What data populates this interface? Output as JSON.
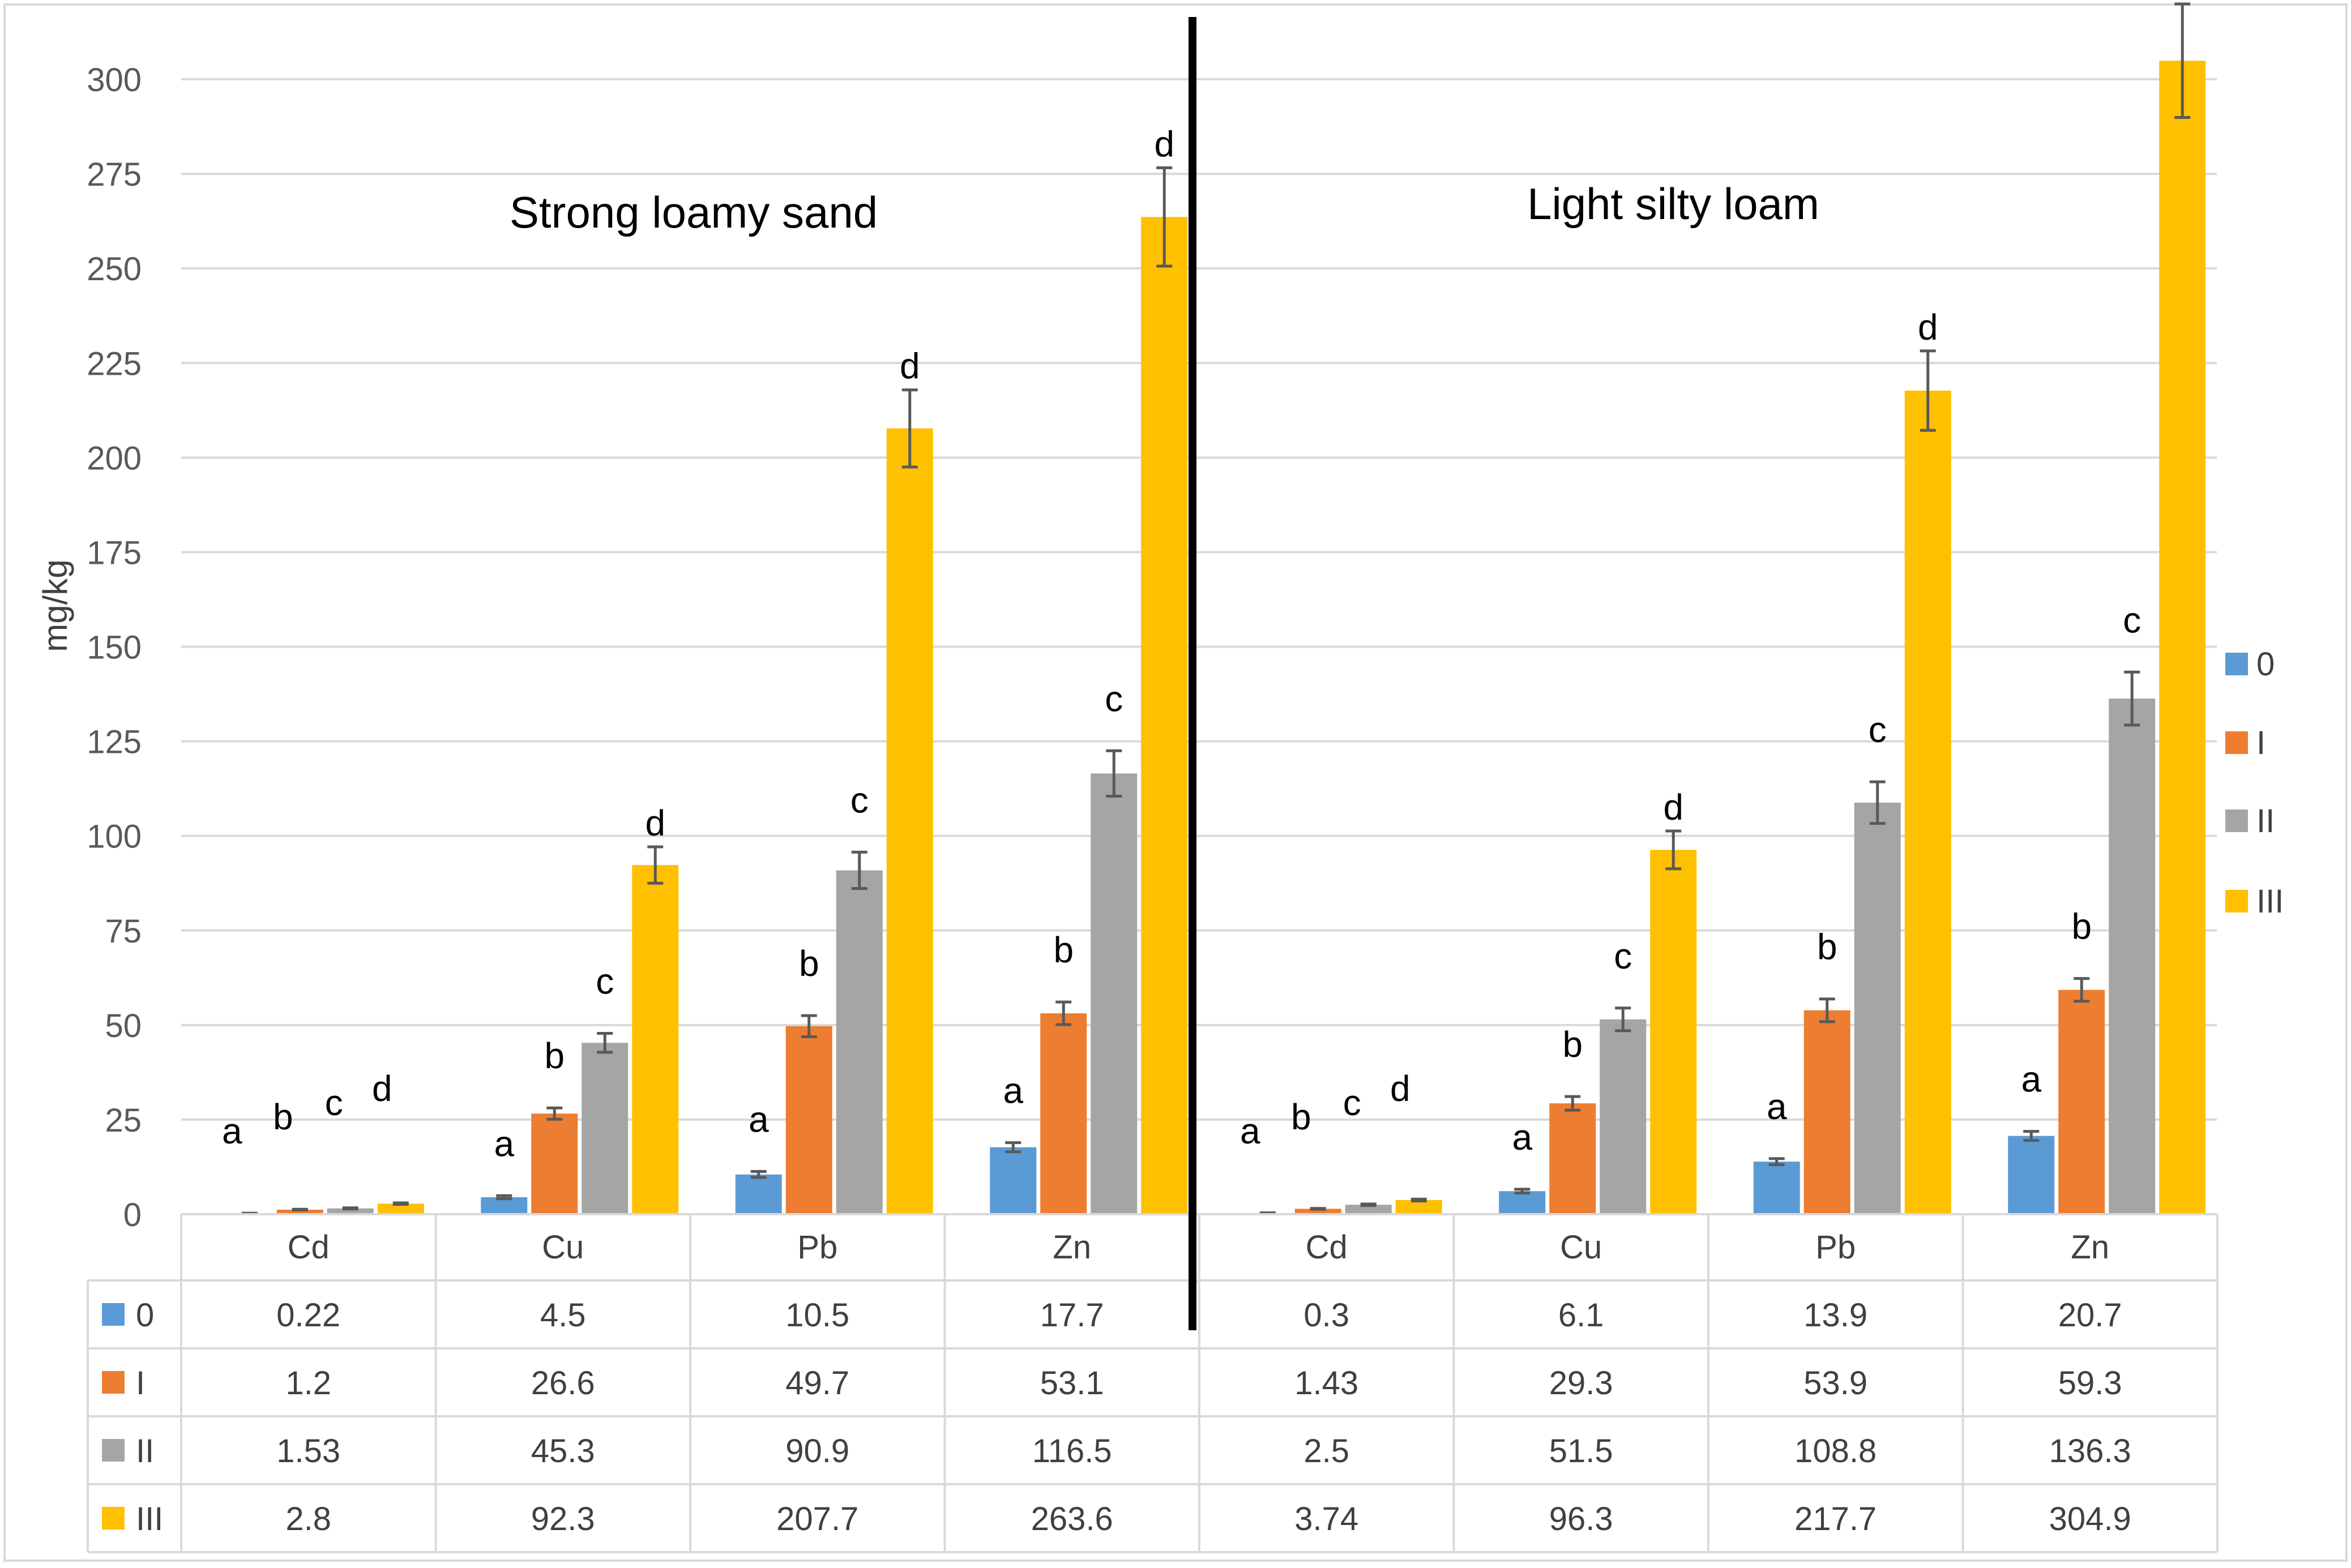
{
  "chart_data": {
    "type": "bar",
    "ylabel": "mg/kg",
    "ylim": [
      0,
      300
    ],
    "yticks": [
      0,
      25,
      50,
      75,
      100,
      125,
      150,
      175,
      200,
      225,
      250,
      275,
      300
    ],
    "grid": true,
    "legend": {
      "position": "right",
      "entries": [
        "0",
        "I",
        "II",
        "III"
      ]
    },
    "series_names": [
      "0",
      "I",
      "II",
      "III"
    ],
    "colors": {
      "0": "#5B9BD5",
      "I": "#ED7D31",
      "II": "#A5A5A5",
      "III": "#FFC000"
    },
    "groups": [
      {
        "title": "Strong loamy sand",
        "categories": [
          "Cd",
          "Cu",
          "Pb",
          "Zn"
        ],
        "series": [
          {
            "name": "0",
            "values": [
              0.22,
              4.5,
              10.5,
              17.7
            ],
            "errors": [
              0.05,
              0.4,
              0.8,
              1.2
            ]
          },
          {
            "name": "I",
            "values": [
              1.2,
              26.6,
              49.7,
              53.1
            ],
            "errors": [
              0.1,
              1.5,
              2.8,
              3.0
            ]
          },
          {
            "name": "II",
            "values": [
              1.53,
              45.3,
              90.9,
              116.5
            ],
            "errors": [
              0.15,
              2.5,
              4.8,
              6.0
            ]
          },
          {
            "name": "III",
            "values": [
              2.8,
              92.3,
              207.7,
              263.6
            ],
            "errors": [
              0.2,
              4.8,
              10.2,
              13.0
            ]
          }
        ],
        "letters": [
          [
            "a",
            "b",
            "c",
            "d"
          ],
          [
            "a",
            "b",
            "c",
            "d"
          ],
          [
            "a",
            "b",
            "c",
            "d"
          ],
          [
            "a",
            "b",
            "c",
            "d"
          ]
        ]
      },
      {
        "title": "Light silty loam",
        "categories": [
          "Cd",
          "Cu",
          "Pb",
          "Zn"
        ],
        "series": [
          {
            "name": "0",
            "values": [
              0.3,
              6.1,
              13.9,
              20.7
            ],
            "errors": [
              0.05,
              0.5,
              0.8,
              1.2
            ]
          },
          {
            "name": "I",
            "values": [
              1.43,
              29.3,
              53.9,
              59.3
            ],
            "errors": [
              0.1,
              1.8,
              3.0,
              3.0
            ]
          },
          {
            "name": "II",
            "values": [
              2.5,
              51.5,
              108.8,
              136.3
            ],
            "errors": [
              0.2,
              3.0,
              5.5,
              7.0
            ]
          },
          {
            "name": "III",
            "values": [
              3.74,
              96.3,
              217.7,
              304.9
            ],
            "errors": [
              0.25,
              5.0,
              10.5,
              15.0
            ]
          }
        ],
        "letters": [
          [
            "a",
            "b",
            "c",
            "d"
          ],
          [
            "a",
            "b",
            "c",
            "d"
          ],
          [
            "a",
            "b",
            "c",
            "d"
          ],
          [
            "a",
            "b",
            "c",
            "d"
          ]
        ]
      }
    ]
  }
}
